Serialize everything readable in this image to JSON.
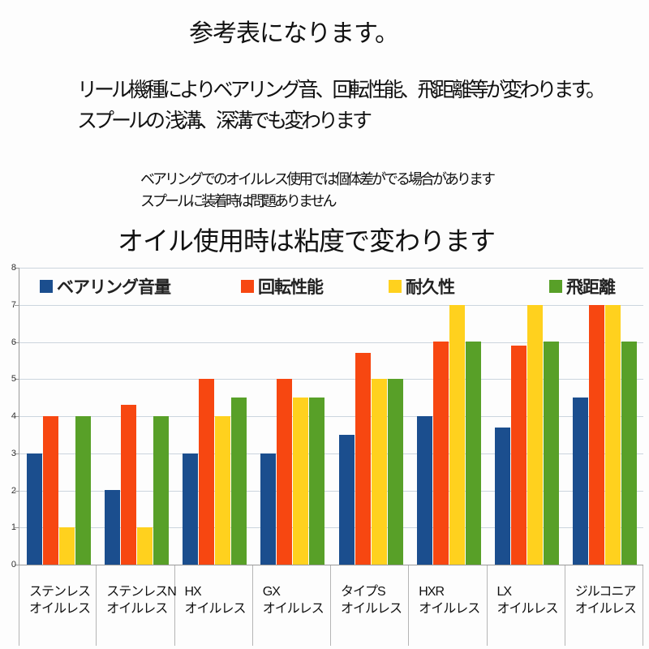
{
  "header": {
    "title": "参考表になります。",
    "para1_line1": "リール機種によりベアリング音、回転性能、飛距離等が変わります。",
    "para1_line2": "スプールの 浅溝、深溝でも変わります",
    "note_line1": "ベアリングでのオイルレス使用では個体差がでる場合があります",
    "note_line2": "スプールに装着時は問題ありません"
  },
  "chart_data": {
    "type": "bar",
    "title": "オイル使用時は粘度で変わります",
    "categories": [
      [
        "ステンレス",
        "オイルレス"
      ],
      [
        "ステンレスN",
        "オイルレス"
      ],
      [
        "HX",
        "オイルレス"
      ],
      [
        "GX",
        "オイルレス"
      ],
      [
        "タイプS",
        "オイルレス"
      ],
      [
        "HXR",
        "オイルレス"
      ],
      [
        "LX",
        "オイルレス"
      ],
      [
        "ジルコニア",
        "オイルレス"
      ]
    ],
    "series": [
      {
        "name": "ベアリング音量",
        "color": "#1B4E8E",
        "values": [
          3,
          2,
          3,
          3,
          3.5,
          4,
          3.7,
          4.5
        ]
      },
      {
        "name": "回転性能",
        "color": "#F74711",
        "values": [
          4,
          4.3,
          5,
          5,
          5.7,
          6,
          5.9,
          7
        ]
      },
      {
        "name": "耐久性",
        "color": "#FFD11E",
        "values": [
          1,
          1,
          4,
          4.5,
          5,
          7,
          7,
          7
        ]
      },
      {
        "name": "飛距離",
        "color": "#58A028",
        "values": [
          4,
          4,
          4.5,
          4.5,
          5,
          6,
          6,
          6
        ]
      }
    ],
    "xlabel": "",
    "ylabel": "",
    "ylim": [
      0,
      8
    ],
    "ytick_step": 1,
    "grid": true,
    "legend_position": "top-inside",
    "colors": {
      "gridline": "#ccd5de",
      "axis": "#999999",
      "separator": "#b5b5b5"
    }
  }
}
